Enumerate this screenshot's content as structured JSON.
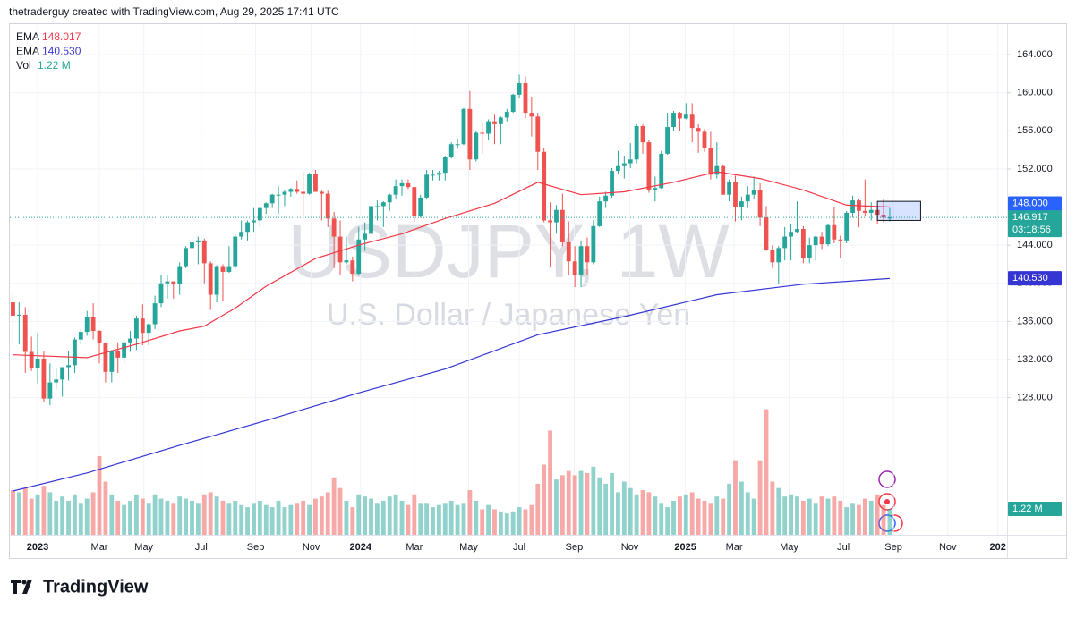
{
  "header": {
    "credit": "thetraderguy created with TradingView.com, Aug 29, 2025 17:41 UTC"
  },
  "footer": {
    "brand": "TradingView"
  },
  "chart_data": {
    "type": "candlestick",
    "title": "USDJPY, 1W",
    "subtitle": "U.S. Dollar / Japanese Yen",
    "up_color": "#26a69a",
    "down_color": "#ef5350",
    "xlim": [
      -4.5,
      157
    ],
    "ylim": [
      113.6,
      167.2
    ],
    "yticks": [
      {
        "value": 128,
        "label": "128.000"
      },
      {
        "value": 132,
        "label": "132.000"
      },
      {
        "value": 136,
        "label": "136.000"
      },
      {
        "value": 140,
        "label": "140.000"
      },
      {
        "value": 144,
        "label": "144.000"
      },
      {
        "value": 148,
        "label": "148.000"
      },
      {
        "value": 152,
        "label": "152.000"
      },
      {
        "value": 156,
        "label": "156.000"
      },
      {
        "value": 160,
        "label": "160.000"
      },
      {
        "value": 164,
        "label": "164.000"
      }
    ],
    "xticks": [
      {
        "value": 0,
        "label": "2023"
      },
      {
        "value": 10,
        "label": "Mar"
      },
      {
        "value": 17.2,
        "label": "May"
      },
      {
        "value": 26.5,
        "label": "Jul"
      },
      {
        "value": 35.3,
        "label": "Sep"
      },
      {
        "value": 44.3,
        "label": "Nov"
      },
      {
        "value": 52.3,
        "label": "2024"
      },
      {
        "value": 61,
        "label": "Mar"
      },
      {
        "value": 69.8,
        "label": "May"
      },
      {
        "value": 78,
        "label": "Jul"
      },
      {
        "value": 86.9,
        "label": "Sep"
      },
      {
        "value": 95.9,
        "label": "Nov"
      },
      {
        "value": 104.9,
        "label": "2025"
      },
      {
        "value": 112.8,
        "label": "Mar"
      },
      {
        "value": 121.7,
        "label": "May"
      },
      {
        "value": 130.5,
        "label": "Jul"
      },
      {
        "value": 138.6,
        "label": "Sep"
      },
      {
        "value": 147.4,
        "label": "Nov"
      },
      {
        "value": 155.5,
        "label": "202"
      }
    ],
    "x": [
      -4,
      -3,
      -2,
      -1,
      0,
      1,
      2,
      3,
      4,
      5,
      6,
      7,
      8,
      9,
      10,
      11,
      12,
      13,
      14,
      15,
      16,
      17,
      18,
      19,
      20,
      21,
      22,
      23,
      24,
      25,
      26,
      27,
      28,
      29,
      30,
      31,
      32,
      33,
      34,
      35,
      36,
      37,
      38,
      39,
      40,
      41,
      42,
      43,
      44,
      45,
      46,
      47,
      48,
      49,
      50,
      51,
      52,
      53,
      54,
      55,
      56,
      57,
      58,
      59,
      60,
      61,
      62,
      63,
      64,
      65,
      66,
      67,
      68,
      69,
      70,
      71,
      72,
      73,
      74,
      75,
      76,
      77,
      78,
      79,
      80,
      81,
      82,
      83,
      84,
      85,
      86,
      87,
      88,
      89,
      90,
      91,
      92,
      93,
      94,
      95,
      96,
      97,
      98,
      99,
      100,
      101,
      102,
      103,
      104,
      105,
      106,
      107,
      108,
      109,
      110,
      111,
      112,
      113,
      114,
      115,
      116,
      117,
      118,
      119,
      120,
      121,
      122,
      123,
      124,
      125,
      126,
      127,
      128,
      129,
      130,
      131,
      132,
      133,
      134,
      135,
      136,
      137,
      138
    ],
    "ohlc": [
      [
        138.0,
        139.0,
        133.6,
        136.6
      ],
      [
        136.6,
        138.0,
        133.6,
        136.7
      ],
      [
        136.7,
        137.5,
        130.6,
        132.8
      ],
      [
        132.8,
        134.4,
        130.8,
        131.1
      ],
      [
        131.1,
        134.8,
        129.5,
        132.1
      ],
      [
        132.1,
        132.9,
        127.5,
        127.9
      ],
      [
        127.9,
        131.6,
        127.2,
        129.6
      ],
      [
        129.6,
        131.1,
        128.9,
        129.9
      ],
      [
        129.9,
        131.2,
        128.1,
        131.2
      ],
      [
        131.2,
        132.9,
        129.8,
        131.4
      ],
      [
        131.4,
        134.3,
        130.6,
        134.1
      ],
      [
        134.1,
        135.2,
        133.6,
        134.9
      ],
      [
        134.9,
        137.1,
        134.5,
        136.5
      ],
      [
        136.5,
        137.9,
        134.1,
        135.0
      ],
      [
        135.0,
        135.1,
        131.6,
        133.7
      ],
      [
        133.7,
        133.8,
        129.6,
        130.7
      ],
      [
        130.7,
        133.0,
        129.6,
        132.9
      ],
      [
        132.9,
        133.8,
        130.6,
        132.2
      ],
      [
        132.2,
        134.1,
        131.6,
        133.8
      ],
      [
        133.8,
        135.0,
        132.8,
        134.2
      ],
      [
        134.2,
        136.6,
        133.0,
        136.3
      ],
      [
        136.3,
        137.8,
        133.5,
        134.8
      ],
      [
        134.8,
        135.8,
        133.5,
        135.7
      ],
      [
        135.7,
        138.7,
        135.2,
        137.9
      ],
      [
        137.9,
        140.9,
        137.5,
        140.0
      ],
      [
        140.0,
        140.9,
        138.4,
        140.2
      ],
      [
        140.2,
        140.2,
        138.4,
        139.9
      ],
      [
        139.9,
        142.2,
        138.8,
        141.8
      ],
      [
        141.8,
        143.9,
        141.6,
        143.7
      ],
      [
        143.7,
        145.1,
        143.0,
        144.3
      ],
      [
        144.3,
        144.9,
        142.0,
        144.5
      ],
      [
        144.5,
        144.7,
        140.0,
        142.1
      ],
      [
        142.1,
        142.3,
        137.2,
        138.8
      ],
      [
        138.8,
        141.9,
        138.0,
        141.8
      ],
      [
        141.8,
        142.0,
        138.1,
        141.2
      ],
      [
        141.2,
        143.9,
        141.1,
        141.8
      ],
      [
        141.8,
        145.1,
        141.6,
        144.9
      ],
      [
        144.9,
        146.6,
        144.6,
        145.4
      ],
      [
        145.4,
        146.6,
        144.5,
        146.4
      ],
      [
        146.4,
        147.9,
        145.4,
        146.6
      ],
      [
        146.6,
        147.9,
        145.9,
        147.9
      ],
      [
        147.9,
        148.5,
        147.3,
        148.4
      ],
      [
        148.4,
        149.4,
        147.9,
        149.3
      ],
      [
        149.3,
        150.2,
        147.3,
        149.3
      ],
      [
        149.3,
        149.8,
        148.1,
        149.6
      ],
      [
        149.6,
        150.0,
        149.1,
        149.9
      ],
      [
        149.9,
        150.8,
        149.4,
        149.6
      ],
      [
        149.6,
        151.7,
        146.8,
        149.4
      ],
      [
        149.4,
        151.6,
        149.3,
        151.5
      ],
      [
        151.5,
        151.9,
        149.6,
        149.6
      ],
      [
        149.6,
        149.7,
        146.6,
        149.4
      ],
      [
        149.4,
        149.7,
        145.9,
        146.8
      ],
      [
        146.8,
        147.5,
        141.6,
        144.9
      ],
      [
        144.9,
        146.6,
        140.9,
        142.2
      ],
      [
        142.2,
        144.9,
        142.0,
        142.4
      ],
      [
        142.4,
        142.8,
        140.2,
        141.0
      ],
      [
        141.0,
        145.9,
        140.8,
        144.6
      ],
      [
        144.6,
        146.4,
        143.4,
        145.2
      ],
      [
        145.2,
        148.8,
        145.0,
        148.1
      ],
      [
        148.1,
        148.7,
        146.6,
        148.1
      ],
      [
        148.1,
        148.6,
        145.9,
        148.5
      ],
      [
        148.5,
        149.4,
        147.6,
        149.3
      ],
      [
        149.3,
        150.9,
        148.9,
        150.2
      ],
      [
        150.2,
        150.9,
        149.2,
        150.5
      ],
      [
        150.5,
        150.9,
        149.9,
        150.1
      ],
      [
        150.1,
        150.1,
        146.5,
        147.1
      ],
      [
        147.1,
        149.3,
        146.9,
        149.0
      ],
      [
        149.0,
        151.9,
        148.9,
        151.4
      ],
      [
        151.4,
        151.9,
        150.8,
        151.4
      ],
      [
        151.4,
        151.8,
        150.8,
        151.6
      ],
      [
        151.6,
        153.4,
        150.8,
        153.3
      ],
      [
        153.3,
        154.8,
        153.1,
        154.6
      ],
      [
        154.6,
        155.2,
        154.1,
        154.6
      ],
      [
        154.6,
        158.4,
        154.5,
        158.3
      ],
      [
        158.3,
        160.2,
        151.9,
        153.0
      ],
      [
        153.0,
        156.0,
        152.8,
        155.8
      ],
      [
        155.8,
        156.8,
        153.6,
        155.7
      ],
      [
        155.7,
        157.2,
        155.0,
        157.0
      ],
      [
        157.0,
        157.7,
        154.6,
        156.7
      ],
      [
        156.7,
        157.5,
        154.6,
        157.4
      ],
      [
        157.4,
        158.3,
        157.0,
        158.0
      ],
      [
        158.0,
        159.9,
        157.9,
        159.8
      ],
      [
        159.8,
        161.9,
        159.4,
        161.0
      ],
      [
        161.0,
        161.7,
        157.3,
        157.9
      ],
      [
        157.9,
        159.5,
        155.4,
        157.5
      ],
      [
        157.5,
        157.9,
        151.9,
        153.8
      ],
      [
        153.8,
        154.2,
        146.4,
        146.6
      ],
      [
        146.6,
        148.5,
        141.7,
        146.4
      ],
      [
        146.4,
        148.2,
        145.2,
        147.7
      ],
      [
        147.7,
        149.4,
        143.9,
        144.3
      ],
      [
        144.3,
        146.5,
        140.8,
        142.3
      ],
      [
        142.3,
        143.9,
        139.6,
        140.9
      ],
      [
        140.9,
        144.5,
        139.6,
        143.9
      ],
      [
        143.9,
        144.8,
        140.9,
        142.2
      ],
      [
        142.2,
        146.6,
        142.0,
        146.0
      ],
      [
        146.0,
        149.1,
        145.9,
        148.6
      ],
      [
        148.6,
        149.6,
        147.9,
        149.2
      ],
      [
        149.2,
        152.1,
        149.0,
        151.8
      ],
      [
        151.8,
        153.9,
        151.5,
        152.3
      ],
      [
        152.3,
        153.4,
        151.0,
        152.6
      ],
      [
        152.6,
        154.7,
        152.1,
        153.0
      ],
      [
        153.0,
        156.7,
        152.6,
        156.5
      ],
      [
        156.5,
        156.7,
        153.6,
        154.8
      ],
      [
        154.8,
        155.0,
        149.5,
        149.8
      ],
      [
        149.8,
        151.2,
        148.6,
        150.0
      ],
      [
        150.0,
        153.9,
        149.9,
        153.6
      ],
      [
        153.6,
        157.9,
        153.5,
        156.4
      ],
      [
        156.4,
        158.1,
        156.0,
        157.9
      ],
      [
        157.9,
        158.0,
        156.0,
        157.3
      ],
      [
        157.3,
        158.9,
        157.2,
        157.7
      ],
      [
        157.7,
        158.9,
        154.8,
        156.3
      ],
      [
        156.3,
        156.7,
        153.7,
        155.9
      ],
      [
        155.9,
        156.2,
        153.8,
        154.2
      ],
      [
        154.2,
        155.9,
        150.9,
        151.4
      ],
      [
        151.4,
        154.8,
        151.0,
        152.3
      ],
      [
        152.3,
        152.4,
        149.3,
        149.3
      ],
      [
        149.3,
        150.9,
        148.6,
        150.6
      ],
      [
        150.6,
        151.3,
        146.5,
        148.0
      ],
      [
        148.0,
        149.1,
        146.6,
        148.6
      ],
      [
        148.6,
        150.2,
        147.9,
        149.3
      ],
      [
        149.3,
        151.2,
        148.9,
        149.8
      ],
      [
        149.8,
        150.5,
        146.0,
        146.9
      ],
      [
        146.9,
        148.1,
        143.4,
        143.5
      ],
      [
        143.5,
        144.0,
        141.6,
        142.2
      ],
      [
        142.2,
        143.9,
        139.9,
        143.7
      ],
      [
        143.7,
        145.9,
        142.4,
        144.9
      ],
      [
        144.9,
        146.2,
        142.4,
        145.4
      ],
      [
        145.4,
        148.6,
        145.3,
        145.7
      ],
      [
        145.7,
        146.0,
        142.1,
        142.6
      ],
      [
        142.6,
        144.8,
        142.1,
        144.0
      ],
      [
        144.0,
        145.0,
        142.4,
        144.9
      ],
      [
        144.9,
        145.4,
        143.6,
        144.1
      ],
      [
        144.1,
        146.2,
        143.9,
        146.1
      ],
      [
        146.1,
        148.0,
        144.2,
        144.6
      ],
      [
        144.6,
        145.0,
        142.7,
        144.5
      ],
      [
        144.5,
        147.6,
        144.2,
        147.4
      ],
      [
        147.4,
        149.2,
        146.9,
        148.7
      ],
      [
        148.7,
        148.8,
        145.9,
        147.6
      ],
      [
        147.6,
        150.9,
        147.0,
        147.4
      ],
      [
        147.4,
        148.5,
        146.6,
        147.7
      ],
      [
        147.7,
        148.0,
        146.2,
        147.2
      ],
      [
        147.2,
        148.8,
        146.4,
        146.9
      ],
      [
        146.8,
        147.9,
        146.5,
        146.917
      ]
    ],
    "volume": {
      "name": "Vol",
      "vlim": [
        0,
        24
      ],
      "last": {
        "value": 1.22,
        "label": "1.22 M"
      },
      "values": [
        2.1,
        2.0,
        2.2,
        1.7,
        1.9,
        2.3,
        2.0,
        1.6,
        1.8,
        1.6,
        1.9,
        1.5,
        1.7,
        2.0,
        3.7,
        2.5,
        1.9,
        1.6,
        1.4,
        1.6,
        1.9,
        1.7,
        1.5,
        1.9,
        1.7,
        1.6,
        1.5,
        1.8,
        1.7,
        1.6,
        1.5,
        1.9,
        2.0,
        1.8,
        1.6,
        1.5,
        1.6,
        1.4,
        1.3,
        1.5,
        1.6,
        1.4,
        1.3,
        1.6,
        1.3,
        1.4,
        1.5,
        1.6,
        1.4,
        1.7,
        1.8,
        2.0,
        2.7,
        2.2,
        1.6,
        1.3,
        1.9,
        1.8,
        1.7,
        1.5,
        1.6,
        1.8,
        1.9,
        1.6,
        1.4,
        1.9,
        1.5,
        1.5,
        1.3,
        1.4,
        1.5,
        1.6,
        1.4,
        1.5,
        2.1,
        1.6,
        1.2,
        1.4,
        1.2,
        1.1,
        1.0,
        1.1,
        1.3,
        1.2,
        1.4,
        2.4,
        3.3,
        4.9,
        2.6,
        2.8,
        3.0,
        2.8,
        3.0,
        2.9,
        3.2,
        2.7,
        2.4,
        2.9,
        2.0,
        2.5,
        2.2,
        1.9,
        2.1,
        2.0,
        1.8,
        1.5,
        1.3,
        1.6,
        1.8,
        1.9,
        2.0,
        1.7,
        1.6,
        1.5,
        1.8,
        1.7,
        2.4,
        3.5,
        2.5,
        2.0,
        1.7,
        3.5,
        5.9,
        2.5,
        2.2,
        1.8,
        1.9,
        1.8,
        1.6,
        1.7,
        1.5,
        1.8,
        1.7,
        1.8,
        1.6,
        1.3,
        1.5,
        1.4,
        1.7,
        1.6,
        1.9,
        1.4,
        1.22
      ]
    },
    "ema": [
      {
        "name": "EMA",
        "color": "#f23645",
        "last": 148.017,
        "x": [
          -4,
          8,
          16,
          23,
          27,
          32,
          37,
          45,
          52,
          59,
          66,
          74,
          81,
          88,
          95,
          103,
          110,
          117,
          124,
          131,
          138
        ],
        "values": [
          132.5,
          132.2,
          133.6,
          135.0,
          135.5,
          137.4,
          139.7,
          142.6,
          144.0,
          145.2,
          146.8,
          148.4,
          150.6,
          149.3,
          149.6,
          150.6,
          151.7,
          151.0,
          149.8,
          148.2,
          148.0
        ]
      },
      {
        "name": "EMA",
        "color": "#3535d4",
        "last": {
          "value": 140.53,
          "label": "140.530"
        },
        "x": [
          -4,
          8,
          23,
          37,
          52,
          66,
          81,
          95,
          110,
          124,
          138
        ],
        "values": [
          118.2,
          120.1,
          123.0,
          125.6,
          128.5,
          131.0,
          134.6,
          136.5,
          138.8,
          139.9,
          140.5
        ]
      }
    ],
    "price_line": {
      "value": 148,
      "label": "148.000",
      "color": "#2962ff"
    },
    "last_price": {
      "value": 146.917,
      "countdown": "03:18:56"
    },
    "box": {
      "x": [
        136,
        143
      ],
      "y": [
        146.6,
        148.6
      ]
    }
  }
}
